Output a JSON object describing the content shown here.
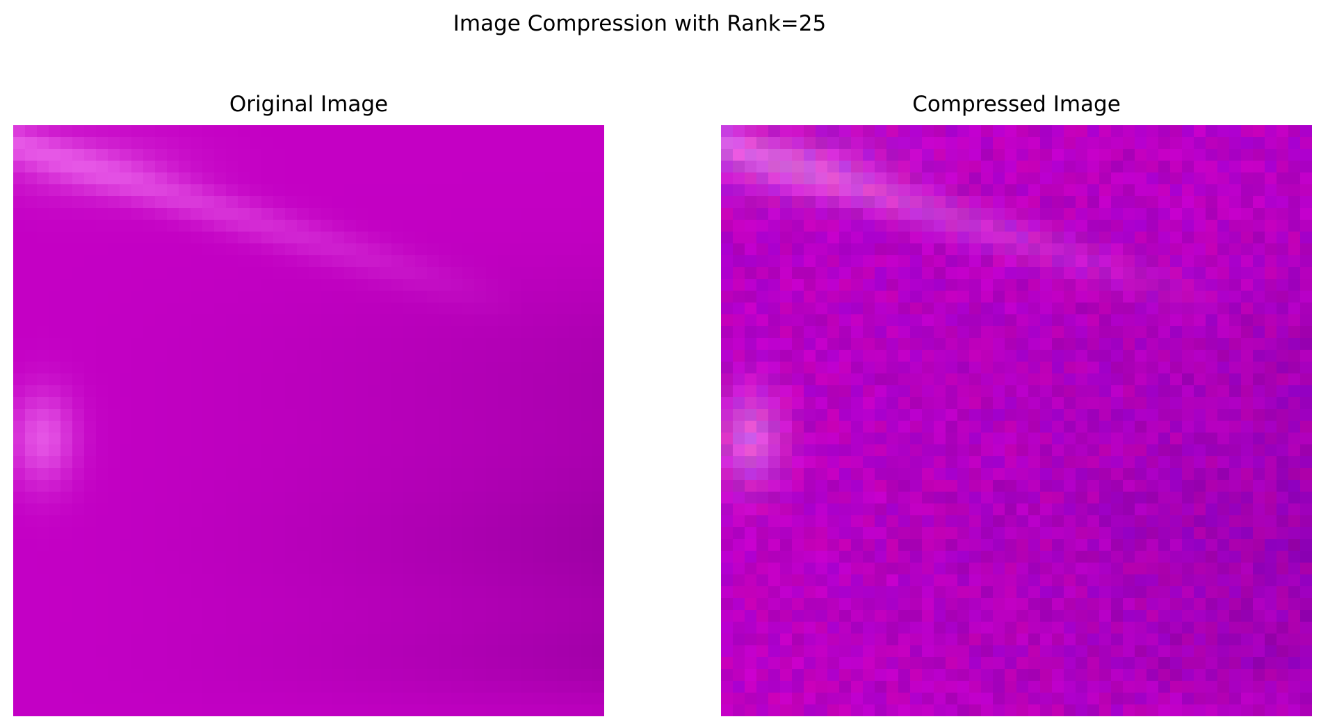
{
  "figure": {
    "title": "Image Compression with Rank=25"
  },
  "panels": [
    {
      "title": "Original Image",
      "image_grid": 50,
      "colors": {
        "base": "#c400c4",
        "highlight": "#f070f0",
        "shade_right": "#8e0098",
        "shade_bottom": "#c000c8"
      }
    },
    {
      "title": "Compressed Image",
      "image_grid": 50,
      "colors": {
        "base": "#b800c4",
        "highlight": "#e878e8",
        "shade_right": "#8a00a8",
        "shade_bottom": "#c800c0"
      },
      "noise": true
    }
  ]
}
